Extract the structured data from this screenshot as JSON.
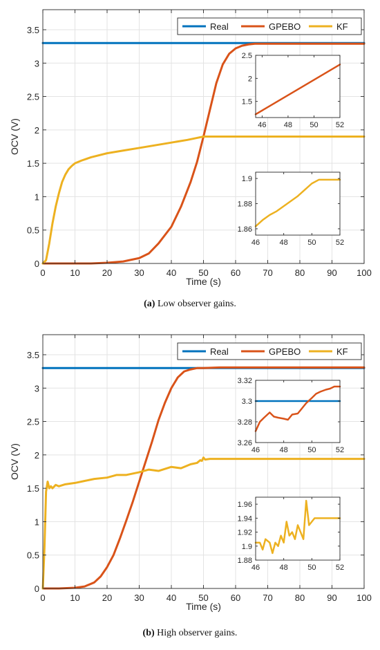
{
  "colors": {
    "real": "#0072BD",
    "gpebo": "#D95319",
    "kf": "#EDB120"
  },
  "chart_data": [
    {
      "type": "line",
      "caption": {
        "tag": "(a)",
        "text": " Low observer gains."
      },
      "xlabel": "Time (s)",
      "ylabel": "OCV (V)",
      "xlim": [
        0,
        100
      ],
      "ylim": [
        0,
        3.8
      ],
      "xticks": [
        "0",
        "10",
        "20",
        "30",
        "40",
        "50",
        "60",
        "70",
        "80",
        "90",
        "100"
      ],
      "yticks": [
        "0",
        "0.5",
        "1",
        "1.5",
        "2",
        "2.5",
        "3",
        "3.5"
      ],
      "grid": true,
      "legend": "top-right",
      "series": [
        {
          "name": "Real",
          "x": [
            0,
            100
          ],
          "y": [
            3.3,
            3.3
          ]
        },
        {
          "name": "GPEBO",
          "x": [
            0,
            5,
            10,
            15,
            20,
            25,
            30,
            33,
            36,
            40,
            43,
            46,
            48,
            50,
            52,
            54,
            56,
            58,
            60,
            62,
            64,
            66,
            68,
            70,
            75,
            80,
            90,
            100
          ],
          "y": [
            0,
            0,
            0,
            0,
            0.01,
            0.03,
            0.08,
            0.15,
            0.3,
            0.55,
            0.85,
            1.22,
            1.52,
            1.9,
            2.3,
            2.7,
            2.98,
            3.14,
            3.22,
            3.26,
            3.28,
            3.29,
            3.29,
            3.29,
            3.29,
            3.29,
            3.29,
            3.29
          ]
        },
        {
          "name": "KF",
          "x": [
            0,
            1,
            2,
            3,
            4,
            5,
            6,
            7,
            8,
            9,
            10,
            12,
            15,
            20,
            25,
            30,
            35,
            40,
            45,
            48,
            50,
            55,
            60,
            70,
            80,
            90,
            100
          ],
          "y": [
            0,
            0.05,
            0.3,
            0.6,
            0.85,
            1.05,
            1.22,
            1.33,
            1.41,
            1.46,
            1.5,
            1.54,
            1.59,
            1.65,
            1.69,
            1.73,
            1.77,
            1.81,
            1.85,
            1.88,
            1.9,
            1.9,
            1.9,
            1.9,
            1.9,
            1.9,
            1.9
          ]
        }
      ],
      "insets": [
        {
          "xlim": [
            45.5,
            52
          ],
          "ylim": [
            1.15,
            2.5
          ],
          "xticks": [
            "46",
            "48",
            "50",
            "52"
          ],
          "yticks": [
            "1.5",
            "2",
            "2.5"
          ],
          "series": [
            {
              "name": "GPEBO",
              "x": [
                45.5,
                52
              ],
              "y": [
                1.22,
                2.3
              ]
            }
          ]
        },
        {
          "xlim": [
            46,
            52
          ],
          "ylim": [
            1.855,
            1.905
          ],
          "xticks": [
            "46",
            "48",
            "50",
            "52"
          ],
          "yticks": [
            "1.86",
            "1.88",
            "1.9"
          ],
          "series": [
            {
              "name": "KF",
              "x": [
                46,
                46.5,
                47,
                47.5,
                48,
                48.5,
                49,
                49.5,
                50,
                50.5,
                51,
                51.5,
                52
              ],
              "y": [
                1.862,
                1.867,
                1.871,
                1.874,
                1.878,
                1.882,
                1.886,
                1.891,
                1.896,
                1.899,
                1.899,
                1.899,
                1.899
              ]
            }
          ]
        }
      ]
    },
    {
      "type": "line",
      "caption": {
        "tag": "(b)",
        "text": " High observer gains."
      },
      "xlabel": "Time (s)",
      "ylabel": "OCV (V)",
      "xlim": [
        0,
        100
      ],
      "ylim": [
        0,
        3.8
      ],
      "xticks": [
        "0",
        "10",
        "20",
        "30",
        "40",
        "50",
        "60",
        "70",
        "80",
        "90",
        "100"
      ],
      "yticks": [
        "0",
        "0.5",
        "1",
        "1.5",
        "2",
        "2.5",
        "3",
        "3.5"
      ],
      "grid": true,
      "legend": "top-right",
      "series": [
        {
          "name": "Real",
          "x": [
            0,
            100
          ],
          "y": [
            3.3,
            3.3
          ]
        },
        {
          "name": "GPEBO",
          "x": [
            0,
            5,
            10,
            13,
            16,
            18,
            20,
            22,
            24,
            26,
            28,
            30,
            32,
            34,
            36,
            38,
            40,
            42,
            44,
            46,
            48,
            50,
            55,
            60,
            70,
            80,
            90,
            100
          ],
          "y": [
            0,
            0,
            0.01,
            0.03,
            0.09,
            0.18,
            0.32,
            0.5,
            0.75,
            1.02,
            1.3,
            1.6,
            1.9,
            2.2,
            2.52,
            2.78,
            3.0,
            3.16,
            3.25,
            3.28,
            3.3,
            3.3,
            3.31,
            3.31,
            3.31,
            3.31,
            3.31,
            3.31
          ]
        },
        {
          "name": "KF",
          "x": [
            0,
            0.5,
            1,
            1.5,
            2,
            2.5,
            3,
            4,
            5,
            7,
            10,
            13,
            16,
            20,
            23,
            26,
            30,
            33,
            36,
            40,
            43,
            46,
            48,
            49,
            49.5,
            50,
            50.5,
            52,
            60,
            70,
            80,
            90,
            100
          ],
          "y": [
            0,
            0.6,
            1.45,
            1.6,
            1.5,
            1.53,
            1.5,
            1.55,
            1.53,
            1.56,
            1.58,
            1.61,
            1.64,
            1.66,
            1.7,
            1.7,
            1.74,
            1.78,
            1.76,
            1.82,
            1.8,
            1.86,
            1.88,
            1.92,
            1.91,
            1.96,
            1.93,
            1.94,
            1.94,
            1.94,
            1.94,
            1.94,
            1.94
          ]
        }
      ],
      "insets": [
        {
          "xlim": [
            46,
            52
          ],
          "ylim": [
            3.26,
            3.32
          ],
          "xticks": [
            "46",
            "48",
            "50",
            "52"
          ],
          "yticks": [
            "3.26",
            "3.28",
            "3.3",
            "3.32"
          ],
          "series": [
            {
              "name": "Real",
              "x": [
                46,
                52
              ],
              "y": [
                3.3,
                3.3
              ]
            },
            {
              "name": "GPEBO",
              "x": [
                46,
                46.3,
                46.6,
                47,
                47.3,
                47.6,
                48,
                48.3,
                48.6,
                49,
                49.3,
                49.6,
                50,
                50.3,
                50.6,
                51,
                51.3,
                51.6,
                52
              ],
              "y": [
                3.271,
                3.28,
                3.284,
                3.289,
                3.285,
                3.284,
                3.283,
                3.282,
                3.287,
                3.288,
                3.293,
                3.298,
                3.303,
                3.307,
                3.309,
                3.311,
                3.312,
                3.314,
                3.314
              ]
            }
          ]
        },
        {
          "xlim": [
            46,
            52
          ],
          "ylim": [
            1.88,
            1.97
          ],
          "xticks": [
            "46",
            "48",
            "50",
            "52"
          ],
          "yticks": [
            "1.88",
            "1.9",
            "1.92",
            "1.94",
            "1.96"
          ],
          "series": [
            {
              "name": "KF",
              "x": [
                46,
                46.3,
                46.5,
                46.7,
                47,
                47.2,
                47.4,
                47.6,
                47.8,
                48,
                48.2,
                48.4,
                48.6,
                48.8,
                49,
                49.2,
                49.4,
                49.6,
                49.8,
                50,
                50.2,
                50.5,
                51,
                51.5,
                52
              ],
              "y": [
                1.905,
                1.905,
                1.895,
                1.91,
                1.905,
                1.89,
                1.905,
                1.9,
                1.915,
                1.905,
                1.935,
                1.915,
                1.92,
                1.91,
                1.93,
                1.92,
                1.91,
                1.965,
                1.93,
                1.935,
                1.94,
                1.94,
                1.94,
                1.94,
                1.94
              ]
            }
          ]
        }
      ]
    }
  ]
}
